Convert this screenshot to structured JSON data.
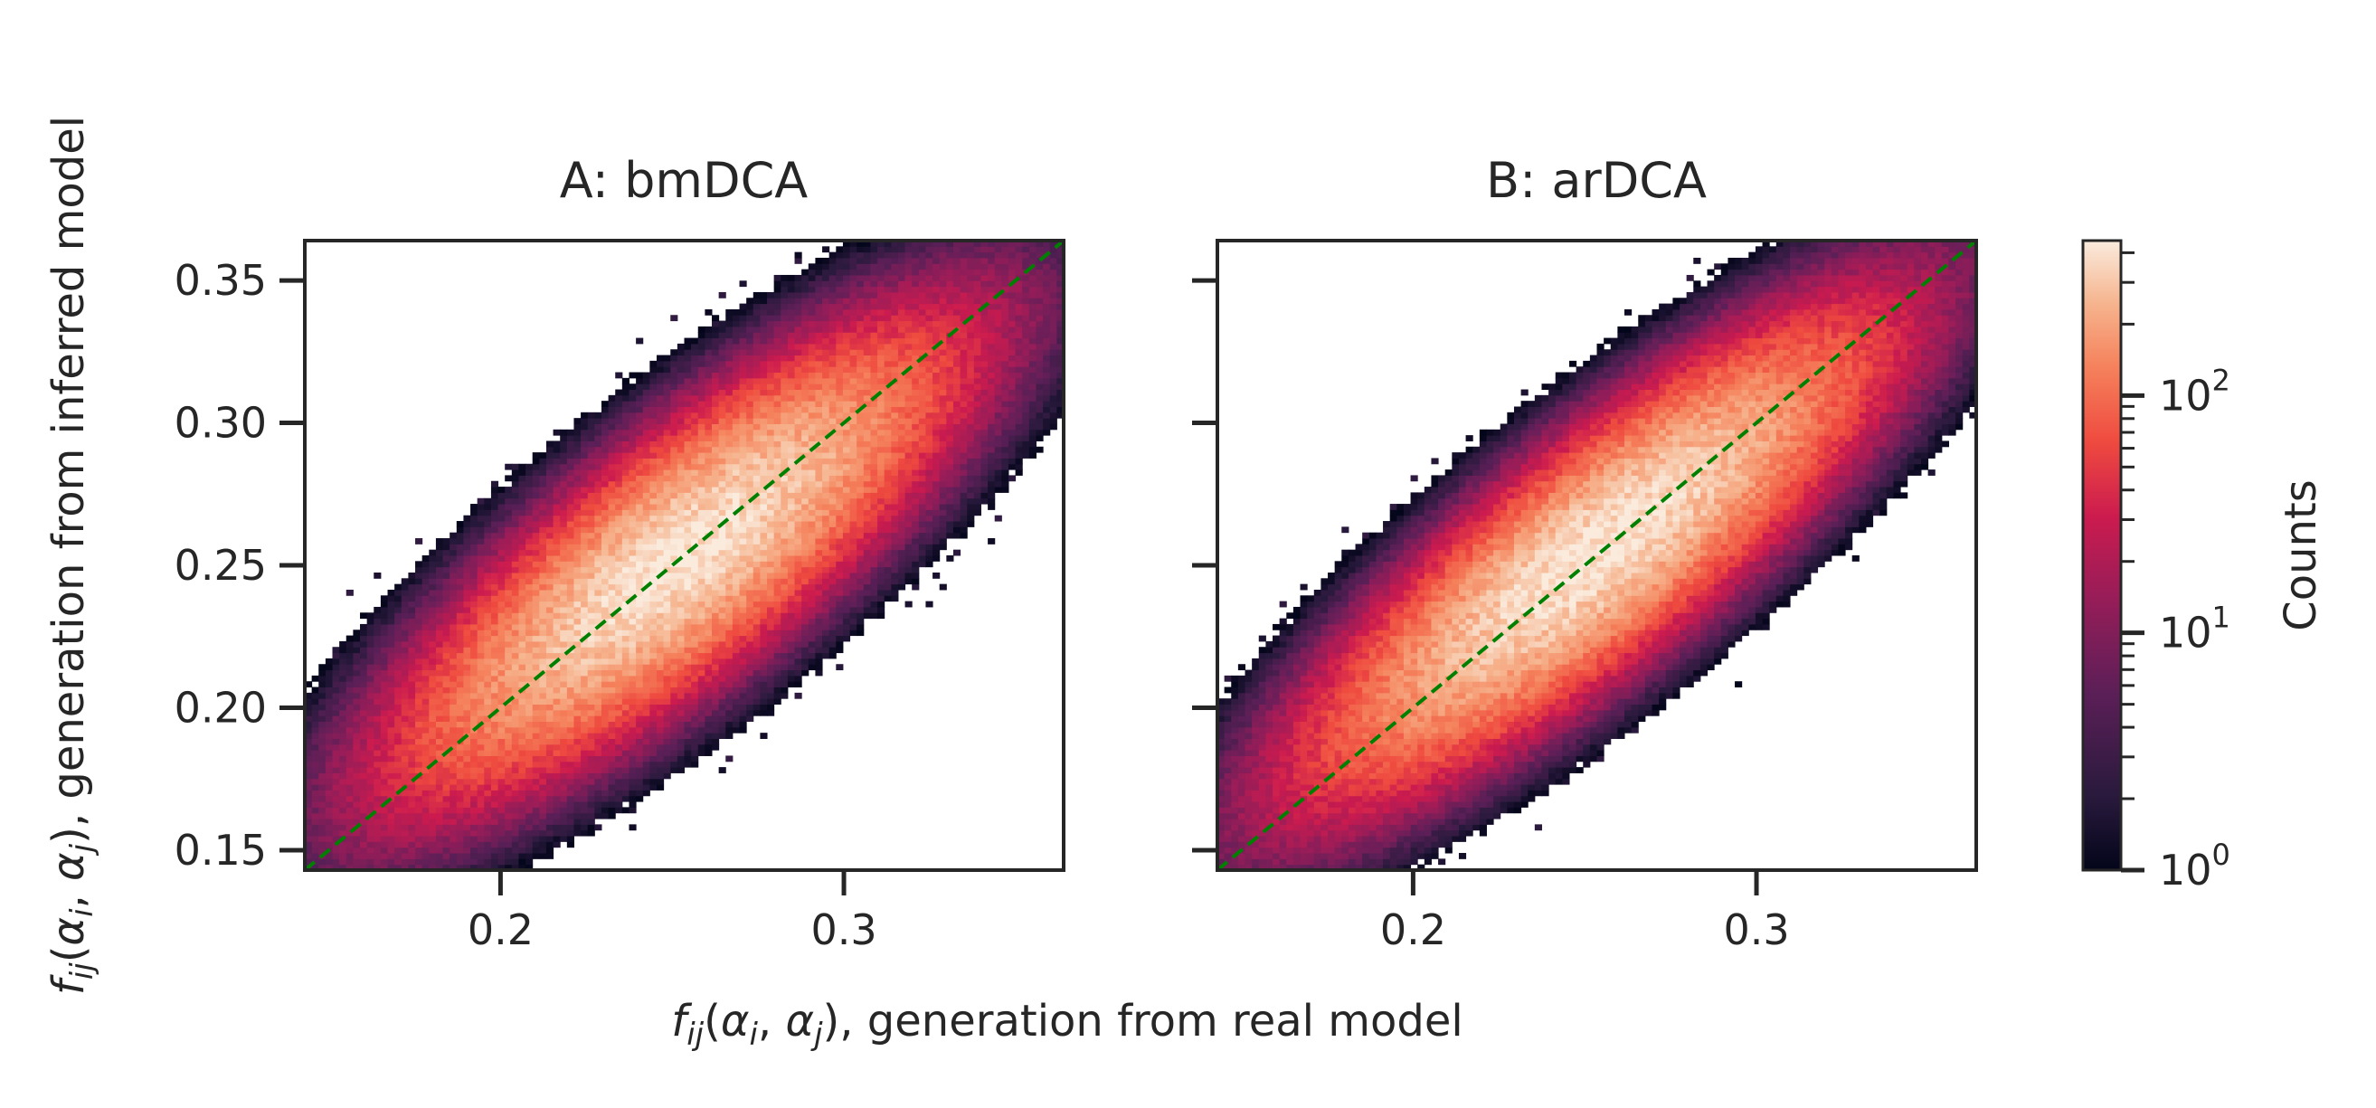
{
  "figure": {
    "ylabel": "f_ij(α_i, α_j), generation from inferred model",
    "xlabel": "f_ij(α_i, α_j), generation from real model",
    "colorbar_label": "Counts",
    "colorbar_ticks": [
      {
        "value": 1,
        "label": "10^0"
      },
      {
        "value": 10,
        "label": "10^1"
      },
      {
        "value": 100,
        "label": "10^2"
      }
    ]
  },
  "chart_data": [
    {
      "type": "heatmap",
      "title": "A: bmDCA",
      "xlim": [
        0.143,
        0.364
      ],
      "ylim": [
        0.143,
        0.364
      ],
      "xticks": [
        0.2,
        0.3
      ],
      "xtick_labels": [
        "0.2",
        "0.3"
      ],
      "yticks": [
        0.15,
        0.2,
        0.25,
        0.3,
        0.35
      ],
      "ytick_labels": [
        "0.15",
        "0.20",
        "0.25",
        "0.30",
        "0.35"
      ],
      "reference_line": "y = x",
      "reference_line_color": "#008000",
      "distribution": {
        "center": [
          0.252,
          0.252
        ],
        "sigma_major": 0.052,
        "sigma_minor": 0.016,
        "peak_count": 420
      },
      "color_scale": "log",
      "vmin": 1,
      "vmax": 450
    },
    {
      "type": "heatmap",
      "title": "B: arDCA",
      "xlim": [
        0.143,
        0.364
      ],
      "ylim": [
        0.143,
        0.364
      ],
      "xticks": [
        0.2,
        0.3
      ],
      "xtick_labels": [
        "0.2",
        "0.3"
      ],
      "yticks": [
        0.15,
        0.2,
        0.25,
        0.3,
        0.35
      ],
      "ytick_labels": [],
      "reference_line": "y = x",
      "reference_line_color": "#008000",
      "distribution": {
        "center": [
          0.253,
          0.254
        ],
        "sigma_major": 0.054,
        "sigma_minor": 0.015,
        "peak_count": 430
      },
      "color_scale": "log",
      "vmin": 1,
      "vmax": 450
    }
  ]
}
